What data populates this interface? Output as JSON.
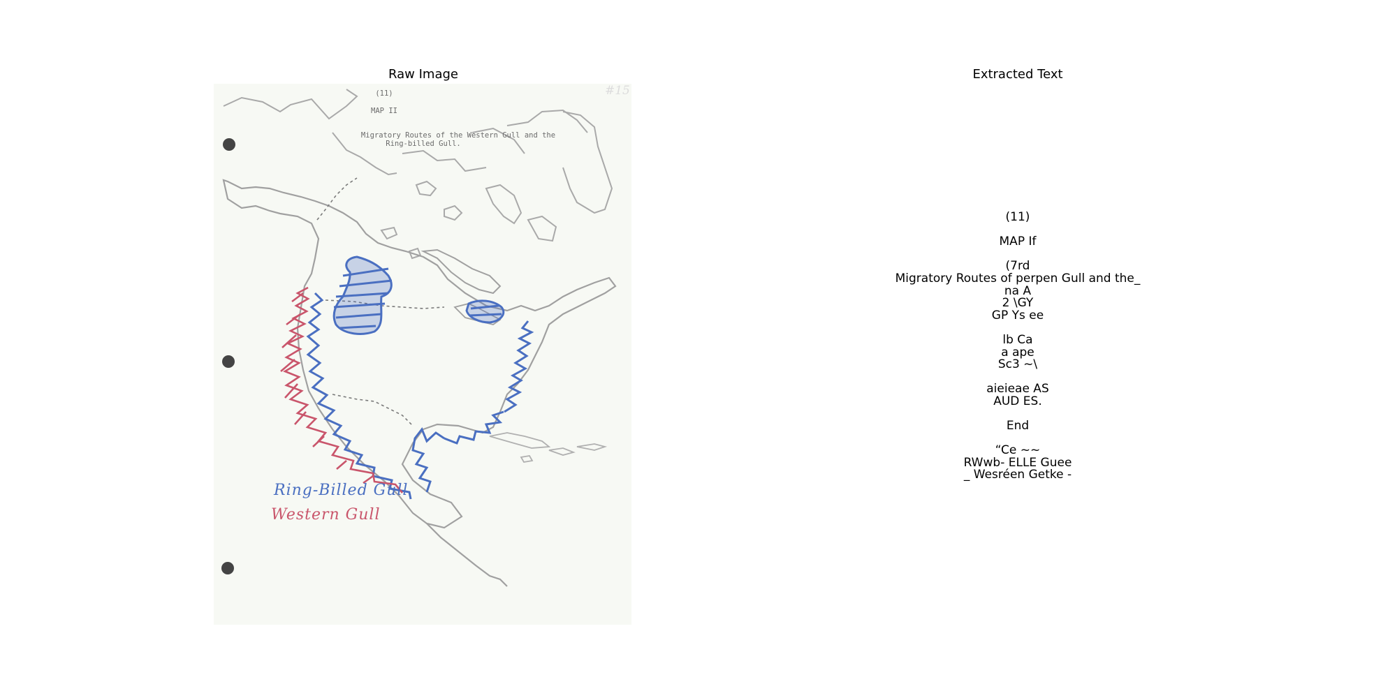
{
  "panels": {
    "left_title": "Raw Image",
    "right_title": "Extracted Text"
  },
  "document": {
    "page_number": "(11)",
    "map_label": "MAP II",
    "title_line1": "Migratory Routes of the Western Gull and the",
    "title_line2": "Ring-billed Gull.",
    "corner_note": "#15",
    "legend": [
      {
        "label": "Ring-Billed Gull",
        "color": "#4a6fc1"
      },
      {
        "label": "Western Gull",
        "color": "#c9556b"
      }
    ]
  },
  "extracted_text": [
    "(11)",
    "",
    "MAP If",
    "",
    "(7rd",
    "Migratory Routes of perpen Gull and the_",
    "na A",
    "2 \\GY",
    "GP Ys ee",
    "",
    "lb Ca",
    "a ape",
    "Sc3 ~\\",
    "",
    "aieieae AS",
    "AUD ES.",
    "",
    "End",
    "",
    "“Ce ~~",
    "RWwb- ELLE Guee",
    "_ Wesréen Getke -"
  ]
}
